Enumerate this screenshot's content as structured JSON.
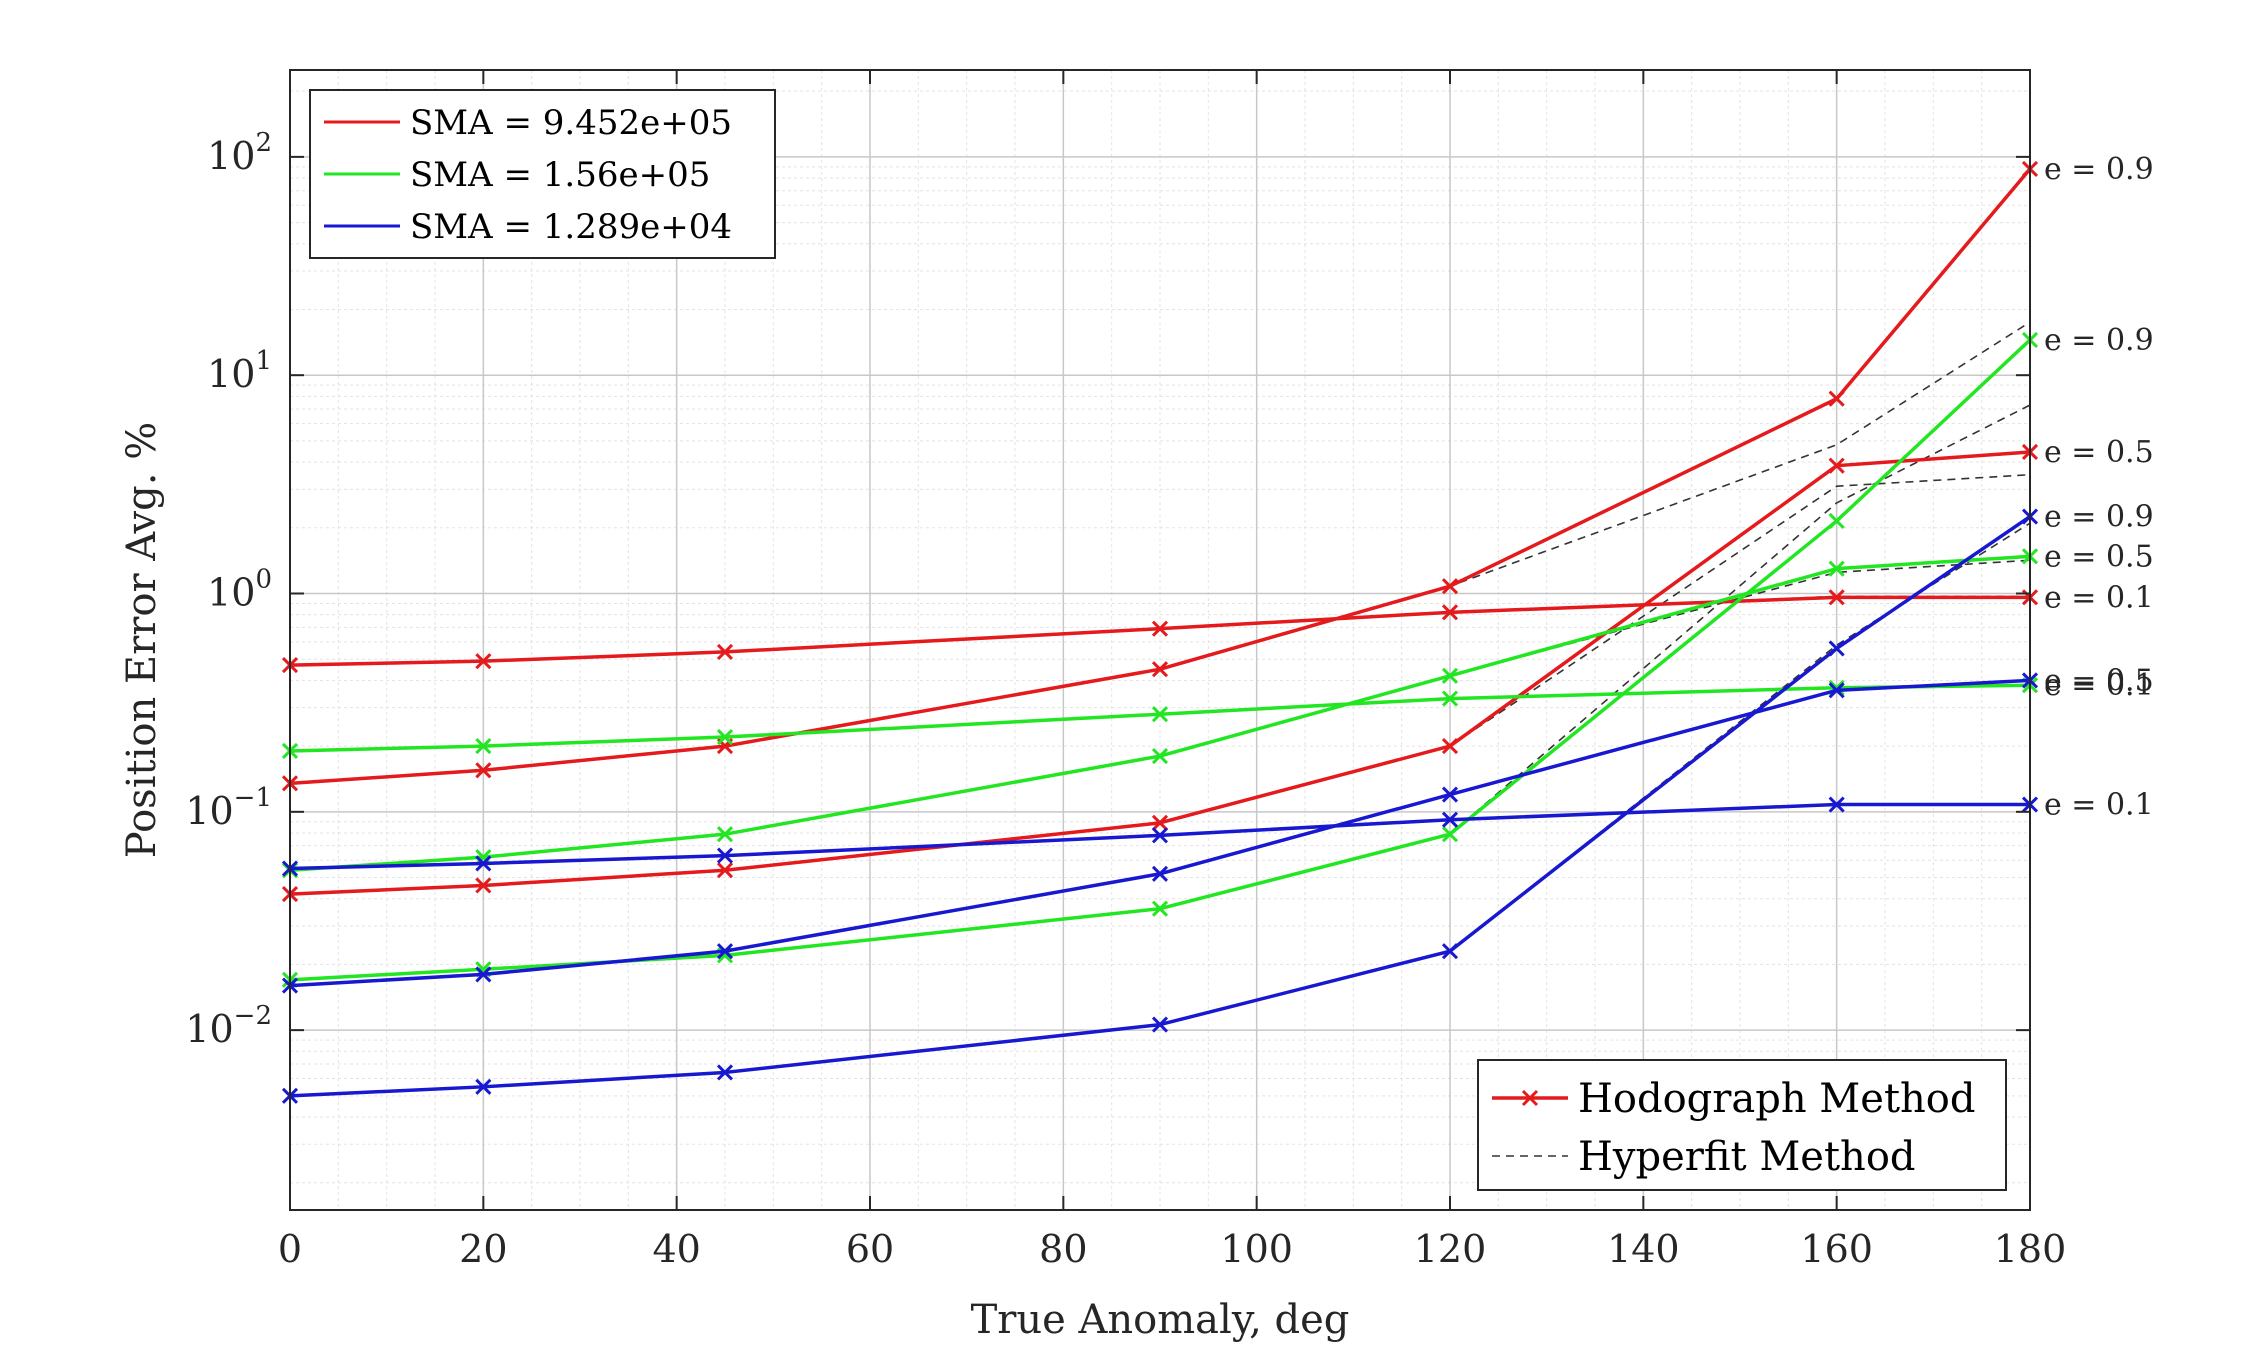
{
  "chart_data": {
    "type": "line",
    "xlabel": "True Anomaly, deg",
    "ylabel": "Position Error Avg. %",
    "xlim": [
      0,
      180
    ],
    "ylim": [
      0.0015,
      250
    ],
    "yscale": "log",
    "grid": true,
    "xticks": [
      "0",
      "20",
      "40",
      "60",
      "80",
      "100",
      "120",
      "140",
      "160",
      "180"
    ],
    "yticks": [
      {
        "base": "10",
        "exp": "−2",
        "value": 0.01
      },
      {
        "base": "10",
        "exp": "−1",
        "value": 0.1
      },
      {
        "base": "10",
        "exp": "0",
        "value": 1
      },
      {
        "base": "10",
        "exp": "1",
        "value": 10
      },
      {
        "base": "10",
        "exp": "2",
        "value": 100
      }
    ],
    "x": [
      0,
      20,
      45,
      90,
      120,
      160,
      180
    ],
    "colors": {
      "red": "#e41a1c",
      "green": "#22e622",
      "blue": "#1818d0",
      "hyperfit": "#333333"
    },
    "sma_legend": {
      "position": "top-left",
      "entries": [
        {
          "label": "SMA = 9.452e+05",
          "color": "red"
        },
        {
          "label": "SMA = 1.56e+05",
          "color": "green"
        },
        {
          "label": "SMA = 1.289e+04",
          "color": "blue"
        }
      ]
    },
    "method_legend": {
      "position": "bottom-right",
      "entries": [
        {
          "label": "Hodograph Method",
          "style": "solid-marker"
        },
        {
          "label": "Hyperfit Method",
          "style": "dashed"
        }
      ]
    },
    "series": [
      {
        "color": "red",
        "e_label": "e = 0.9",
        "values": [
          0.135,
          0.155,
          0.2,
          0.45,
          1.08,
          7.8,
          88
        ]
      },
      {
        "color": "red",
        "e_label": "e = 0.5",
        "values": [
          0.042,
          0.046,
          0.054,
          0.089,
          0.2,
          3.85,
          4.45
        ]
      },
      {
        "color": "red",
        "e_label": "e = 0.1",
        "values": [
          0.47,
          0.49,
          0.54,
          0.69,
          0.82,
          0.96,
          0.96
        ]
      },
      {
        "color": "green",
        "e_label": "e = 0.9",
        "values": [
          0.017,
          0.019,
          0.022,
          0.036,
          0.079,
          2.15,
          14.5
        ]
      },
      {
        "color": "green",
        "e_label": "e = 0.5",
        "values": [
          0.054,
          0.062,
          0.079,
          0.18,
          0.42,
          1.3,
          1.48
        ]
      },
      {
        "color": "green",
        "e_label": "e = 0.1",
        "values": [
          0.19,
          0.2,
          0.22,
          0.28,
          0.33,
          0.37,
          0.38
        ]
      },
      {
        "color": "blue",
        "e_label": "e = 0.9",
        "values": [
          0.005,
          0.0055,
          0.0064,
          0.0106,
          0.023,
          0.56,
          2.25
        ]
      },
      {
        "color": "blue",
        "e_label": "e = 0.5",
        "values": [
          0.016,
          0.018,
          0.023,
          0.052,
          0.12,
          0.36,
          0.4
        ]
      },
      {
        "color": "blue",
        "e_label": "e = 0.1",
        "values": [
          0.055,
          0.058,
          0.063,
          0.078,
          0.092,
          0.108,
          0.108
        ]
      }
    ],
    "hyperfit_series": [
      {
        "values": [
          0.135,
          0.155,
          0.2,
          0.45,
          1.08,
          4.8,
          17.5
        ]
      },
      {
        "values": [
          0.042,
          0.046,
          0.054,
          0.089,
          0.2,
          3.1,
          3.5
        ]
      },
      {
        "values": [
          0.47,
          0.49,
          0.54,
          0.69,
          0.82,
          0.97,
          0.97
        ]
      },
      {
        "values": [
          0.017,
          0.019,
          0.022,
          0.036,
          0.079,
          2.6,
          7.3
        ]
      },
      {
        "values": [
          0.054,
          0.062,
          0.079,
          0.18,
          0.42,
          1.25,
          1.42
        ]
      },
      {
        "values": [
          0.19,
          0.2,
          0.22,
          0.28,
          0.33,
          0.37,
          0.38
        ]
      },
      {
        "values": [
          0.005,
          0.0055,
          0.0064,
          0.0106,
          0.023,
          0.58,
          2.1
        ]
      },
      {
        "values": [
          0.016,
          0.018,
          0.023,
          0.052,
          0.12,
          0.36,
          0.4
        ]
      },
      {
        "values": [
          0.055,
          0.058,
          0.063,
          0.078,
          0.092,
          0.108,
          0.108
        ]
      }
    ]
  }
}
